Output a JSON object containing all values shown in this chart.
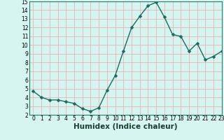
{
  "x": [
    0,
    1,
    2,
    3,
    4,
    5,
    6,
    7,
    8,
    9,
    10,
    11,
    12,
    13,
    14,
    15,
    16,
    17,
    18,
    19,
    20,
    21,
    22,
    23
  ],
  "y": [
    4.7,
    4.0,
    3.7,
    3.7,
    3.5,
    3.3,
    2.7,
    2.4,
    2.8,
    4.8,
    6.5,
    9.3,
    12.0,
    13.3,
    14.5,
    14.9,
    13.2,
    11.2,
    11.0,
    9.3,
    10.2,
    8.3,
    8.7,
    9.3
  ],
  "xlabel": "Humidex (Indice chaleur)",
  "ylim": [
    2,
    15
  ],
  "xlim": [
    -0.5,
    23
  ],
  "yticks": [
    2,
    3,
    4,
    5,
    6,
    7,
    8,
    9,
    10,
    11,
    12,
    13,
    14,
    15
  ],
  "xticks": [
    0,
    1,
    2,
    3,
    4,
    5,
    6,
    7,
    8,
    9,
    10,
    11,
    12,
    13,
    14,
    15,
    16,
    17,
    18,
    19,
    20,
    21,
    22,
    23
  ],
  "line_color": "#1a6b5e",
  "marker_color": "#1a6b5e",
  "bg_color": "#d6f5f0",
  "grid_color_h": "#e8b4b8",
  "grid_color_v": "#e8b4b8",
  "spine_color": "#2a7a6a",
  "tick_label_fontsize": 5.5,
  "xlabel_fontsize": 7.5,
  "marker_size": 2.5,
  "line_width": 1.0
}
